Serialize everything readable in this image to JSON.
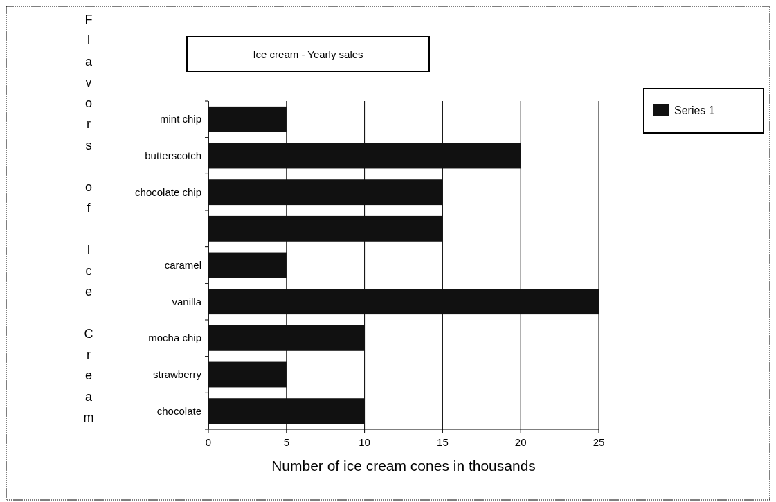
{
  "chart_data": {
    "type": "bar",
    "orientation": "horizontal",
    "title": "Ice cream - Yearly sales",
    "xlabel": "Number of ice cream cones in thousands",
    "ylabel": "Flavors of Ice Cream",
    "categories": [
      "mint chip",
      "butterscotch",
      "chocolate chip",
      null,
      "caramel",
      "vanilla",
      "mocha chip",
      "strawberry",
      "chocolate"
    ],
    "series": [
      {
        "name": "Series 1",
        "color": "#111111",
        "values": [
          5,
          20,
          15,
          15,
          5,
          25,
          10,
          5,
          10
        ]
      }
    ],
    "xlim": [
      0,
      25
    ],
    "xticks": [
      0,
      5,
      10,
      15,
      20,
      25
    ],
    "grid": "x",
    "legend": "top right"
  }
}
